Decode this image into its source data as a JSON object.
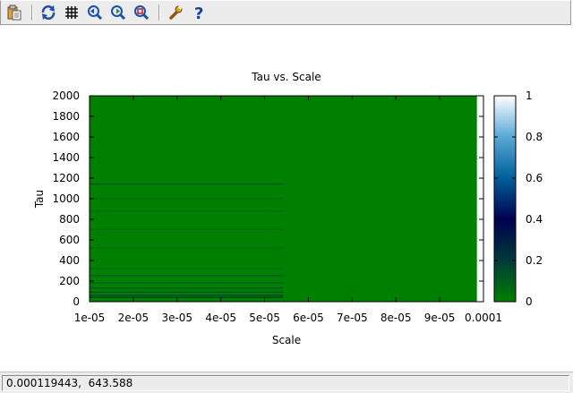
{
  "toolbar": {
    "buttons": [
      {
        "name": "copy-to-clipboard-icon",
        "tooltip": ""
      },
      {
        "name": "replot-icon"
      },
      {
        "name": "grid-icon"
      },
      {
        "name": "zoom-previous-icon"
      },
      {
        "name": "zoom-next-icon"
      },
      {
        "name": "unzoom-icon"
      },
      {
        "name": "settings-wrench-icon"
      },
      {
        "name": "help-icon"
      }
    ],
    "help_glyph": "?"
  },
  "chart_data": {
    "type": "heatmap",
    "title": "Tau vs. Scale",
    "xlabel": "Scale",
    "ylabel": "Tau",
    "xlim": [
      1e-05,
      0.0001
    ],
    "ylim": [
      0,
      2000
    ],
    "x_ticks": [
      "1e-05",
      "2e-05",
      "3e-05",
      "4e-05",
      "5e-05",
      "6e-05",
      "7e-05",
      "8e-05",
      "9e-05",
      "0.0001"
    ],
    "x_tick_values": [
      1e-05,
      2e-05,
      3e-05,
      4e-05,
      5e-05,
      6e-05,
      7e-05,
      8e-05,
      9e-05,
      0.0001
    ],
    "y_ticks": [
      "0",
      "200",
      "400",
      "600",
      "800",
      "1000",
      "1200",
      "1400",
      "1600",
      "1800",
      "2000"
    ],
    "y_tick_values": [
      0,
      200,
      400,
      600,
      800,
      1000,
      1200,
      1400,
      1600,
      1800,
      2000
    ],
    "colorbar": {
      "range": [
        0,
        1
      ],
      "ticks": [
        "0",
        "0.2",
        "0.4",
        "0.6",
        "0.8",
        "1"
      ],
      "tick_values": [
        0,
        0.2,
        0.4,
        0.6,
        0.8,
        1
      ],
      "palette": [
        "#008000",
        "#003a3a",
        "#000050",
        "#005f9a",
        "#5aa8d6",
        "#ffffff"
      ]
    },
    "field": {
      "base_value": 0.0,
      "base_color": "#008000",
      "x_extent_end": 9.85e-05,
      "bands": [
        {
          "tau": 40,
          "value": 0.35
        },
        {
          "tau": 60,
          "value": 0.3
        },
        {
          "tau": 90,
          "value": 0.25
        },
        {
          "tau": 130,
          "value": 0.2
        },
        {
          "tau": 180,
          "value": 0.18
        },
        {
          "tau": 250,
          "value": 0.22
        },
        {
          "tau": 320,
          "value": 0.12
        },
        {
          "tau": 520,
          "value": 0.1
        },
        {
          "tau": 700,
          "value": 0.1
        },
        {
          "tau": 880,
          "value": 0.12
        },
        {
          "tau": 1000,
          "value": 0.1
        },
        {
          "tau": 1140,
          "value": 0.2
        }
      ]
    }
  },
  "status": {
    "coordinates": "0.000119443,  643.588"
  }
}
